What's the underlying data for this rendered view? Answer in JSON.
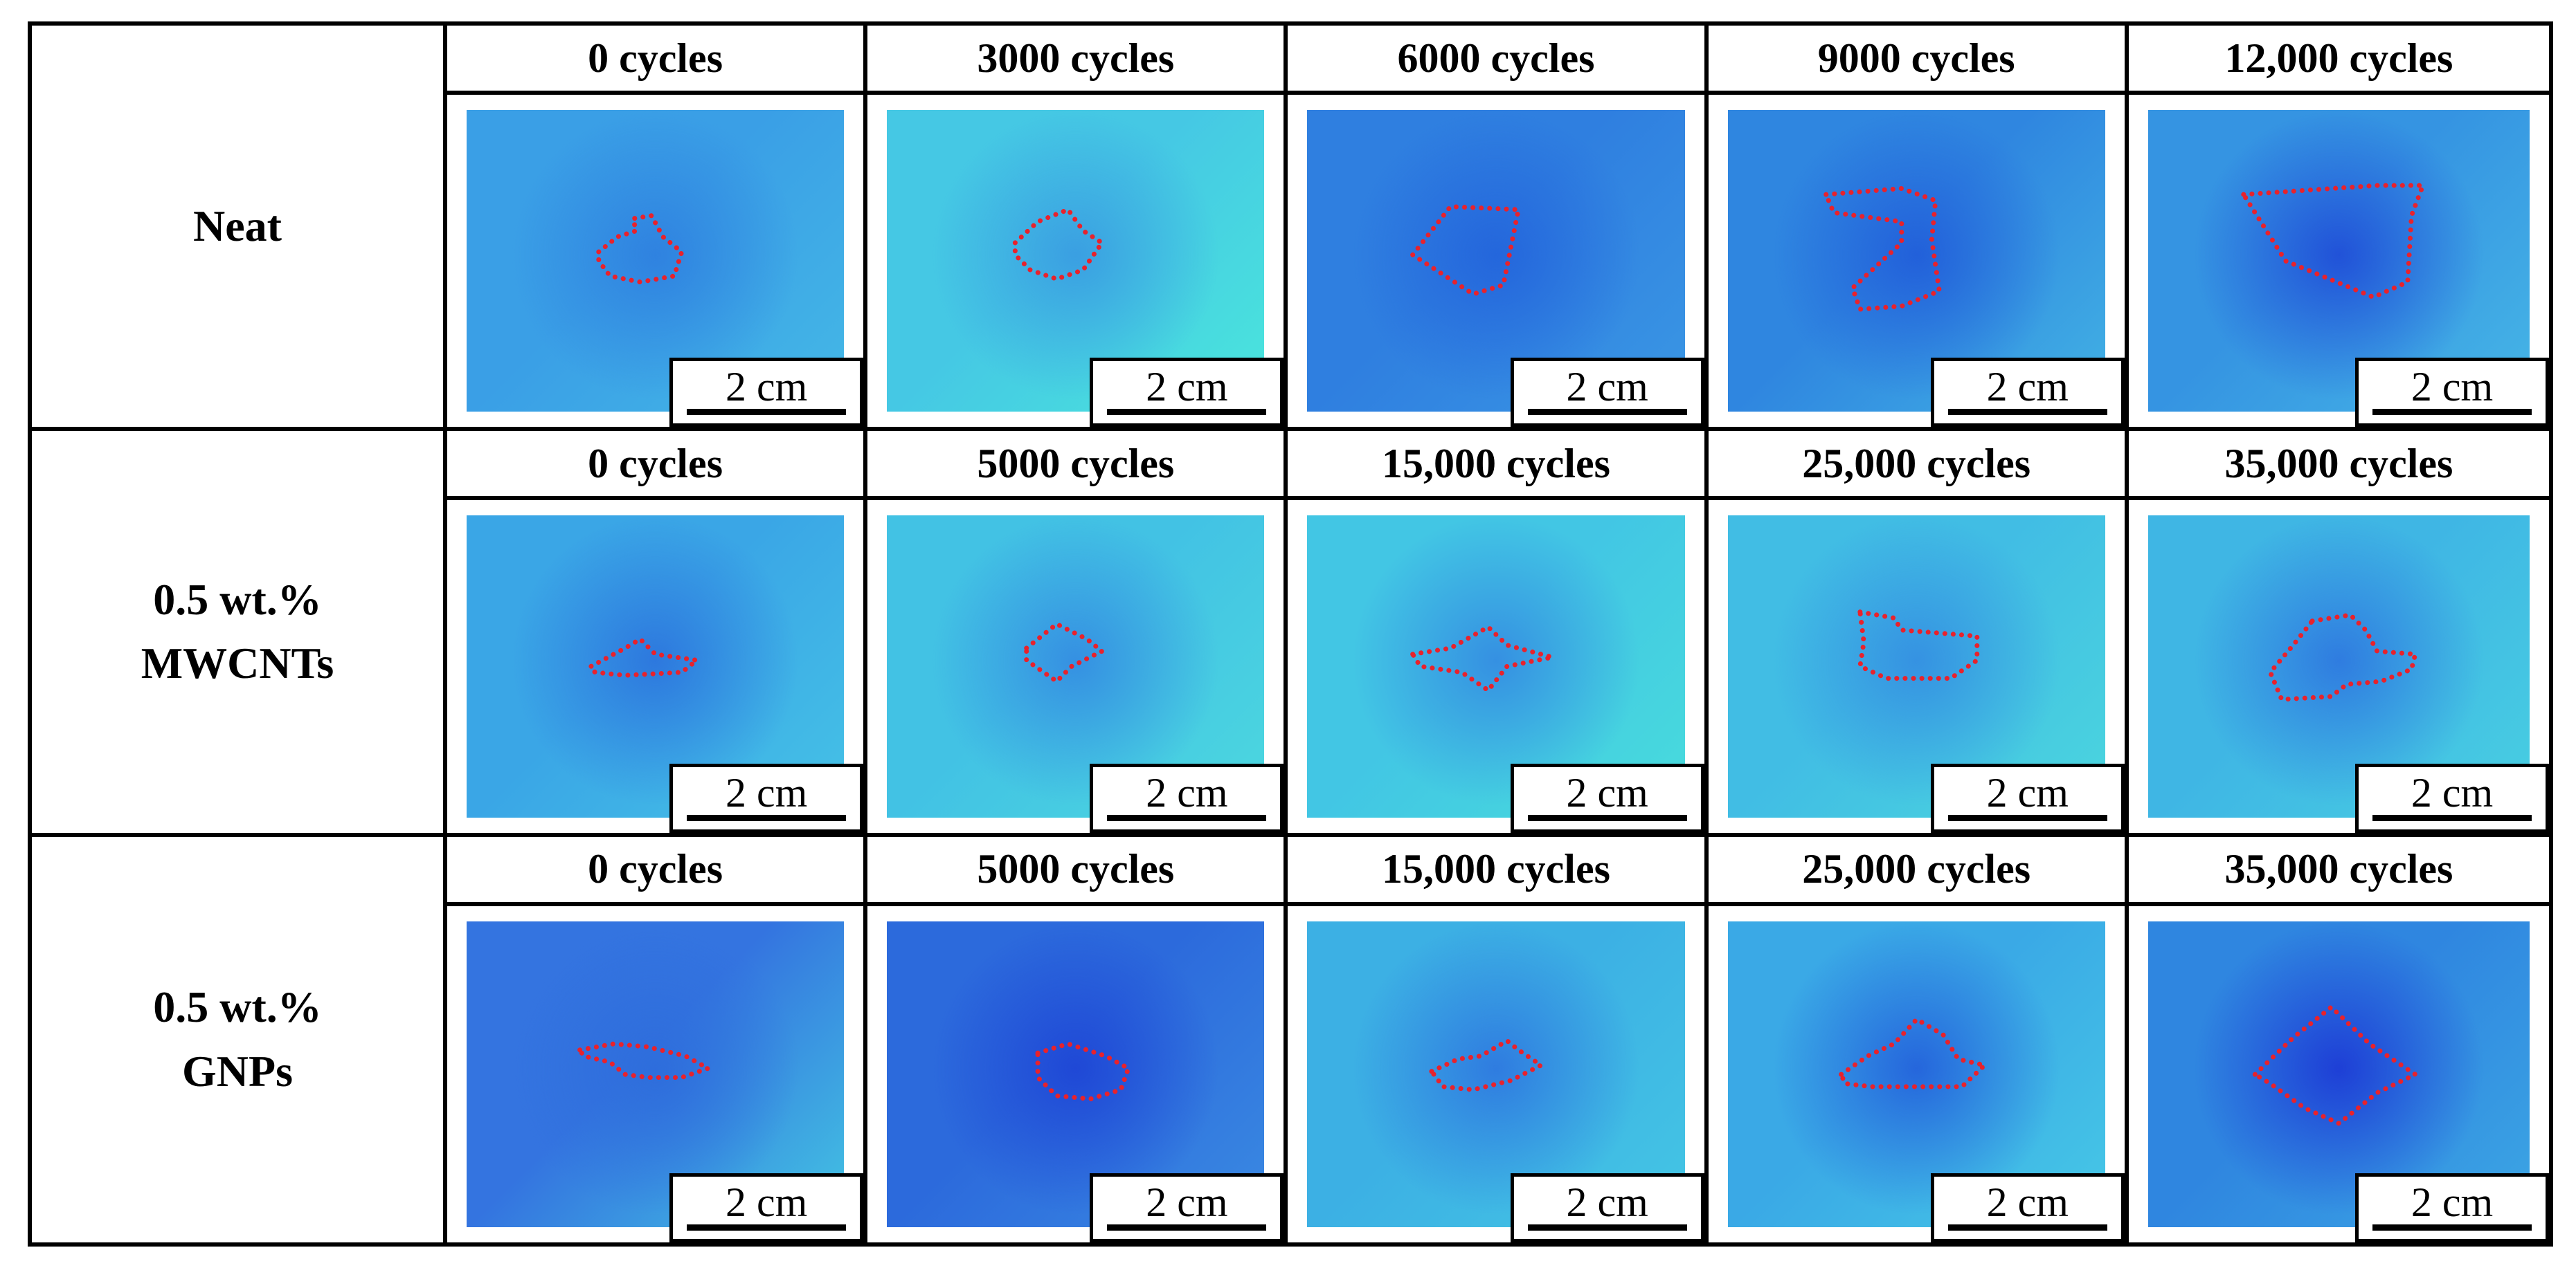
{
  "colors": {
    "defect_outline": "#e8222c",
    "grid_lines": "#000000",
    "scale_box_fill": "#ffffff"
  },
  "scale_bar": {
    "label": "2 cm"
  },
  "rows": [
    {
      "label": "Neat",
      "panels": [
        {
          "cycles": "0 cycles",
          "bg": [
            "#3a9fe6",
            "#44b8e6",
            "#2f82e0"
          ],
          "defect_shape": "small-round"
        },
        {
          "cycles": "3000 cycles",
          "bg": [
            "#45c8e4",
            "#4ae6dc",
            "#3a9fe2"
          ],
          "defect_shape": "small-diamond"
        },
        {
          "cycles": "6000 cycles",
          "bg": [
            "#2f7fe0",
            "#3a97e4",
            "#2466dc"
          ],
          "defect_shape": "quad"
        },
        {
          "cycles": "9000 cycles",
          "bg": [
            "#2f86e0",
            "#42b2e4",
            "#2260da"
          ],
          "defect_shape": "hook"
        },
        {
          "cycles": "12,000 cycles",
          "bg": [
            "#3594e2",
            "#46b6e6",
            "#2152d8"
          ],
          "defect_shape": "large-triangle"
        }
      ]
    },
    {
      "label": "0.5 wt.%\nMWCNTs",
      "panels": [
        {
          "cycles": "0 cycles",
          "bg": [
            "#3aa6e6",
            "#45c2e6",
            "#2d78de"
          ],
          "defect_shape": "flat-spindle"
        },
        {
          "cycles": "5000 cycles",
          "bg": [
            "#42c2e4",
            "#4cd8df",
            "#3590e2"
          ],
          "defect_shape": "small-rhombus"
        },
        {
          "cycles": "15,000 cycles",
          "bg": [
            "#42c6e4",
            "#48dcdc",
            "#3590e2"
          ],
          "defect_shape": "star-spindle"
        },
        {
          "cycles": "25,000 cycles",
          "bg": [
            "#41bde4",
            "#4bd6de",
            "#3592e2"
          ],
          "defect_shape": "blob"
        },
        {
          "cycles": "35,000 cycles",
          "bg": [
            "#3fb6e4",
            "#48cfe2",
            "#2f7ce0"
          ],
          "defect_shape": "large-blob"
        }
      ]
    },
    {
      "label": "0.5 wt.%\nGNPs",
      "panels": [
        {
          "cycles": "0 cycles",
          "bg": [
            "#3474e0",
            "#43c4e2",
            "#2e6ddc"
          ],
          "defect_shape": "thin-ellipse"
        },
        {
          "cycles": "5000 cycles",
          "bg": [
            "#2c6adc",
            "#3a8ae2",
            "#1f48d6"
          ],
          "defect_shape": "ellipse"
        },
        {
          "cycles": "15,000 cycles",
          "bg": [
            "#3cb0e4",
            "#44c6e4",
            "#2f7ce0"
          ],
          "defect_shape": "irregular"
        },
        {
          "cycles": "25,000 cycles",
          "bg": [
            "#3aa9e6",
            "#46c8e6",
            "#2566dc"
          ],
          "defect_shape": "star-irregular"
        },
        {
          "cycles": "35,000 cycles",
          "bg": [
            "#2f86e0",
            "#3ca6e4",
            "#1e3fd6"
          ],
          "defect_shape": "large-diamond"
        }
      ]
    }
  ]
}
